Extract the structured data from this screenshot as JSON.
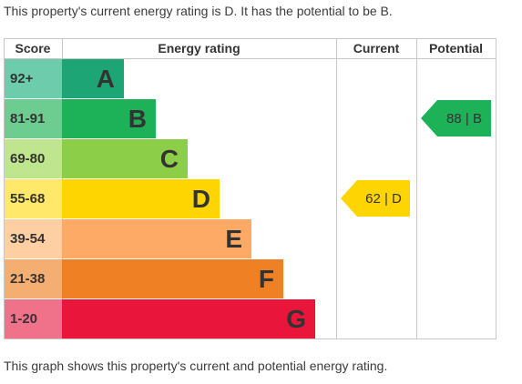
{
  "intro_text": "This property's current energy rating is D. It has the potential to be B.",
  "footer_text": "This graph shows this property's current and potential energy rating.",
  "chart_data": {
    "type": "bar",
    "headers": {
      "score": "Score",
      "energy_rating": "Energy rating",
      "current": "Current",
      "potential": "Potential"
    },
    "bands": [
      {
        "letter": "A",
        "range": "92+",
        "color": "#1ea576",
        "score_color": "#6dccac"
      },
      {
        "letter": "B",
        "range": "81-91",
        "color": "#1db158",
        "score_color": "#6dcc8f"
      },
      {
        "letter": "C",
        "range": "69-80",
        "color": "#8cce47",
        "score_color": "#bfe58e"
      },
      {
        "letter": "D",
        "range": "55-68",
        "color": "#ffd500",
        "score_color": "#ffe86a"
      },
      {
        "letter": "E",
        "range": "39-54",
        "color": "#fcaa65",
        "score_color": "#fdcfa3"
      },
      {
        "letter": "F",
        "range": "21-38",
        "color": "#ef8023",
        "score_color": "#f5ae72"
      },
      {
        "letter": "G",
        "range": "1-20",
        "color": "#e9153b",
        "score_color": "#f0718a"
      }
    ],
    "current": {
      "value": 62,
      "band": "D",
      "label": "62 | D"
    },
    "potential": {
      "value": 88,
      "band": "B",
      "label": "88 | B"
    }
  }
}
